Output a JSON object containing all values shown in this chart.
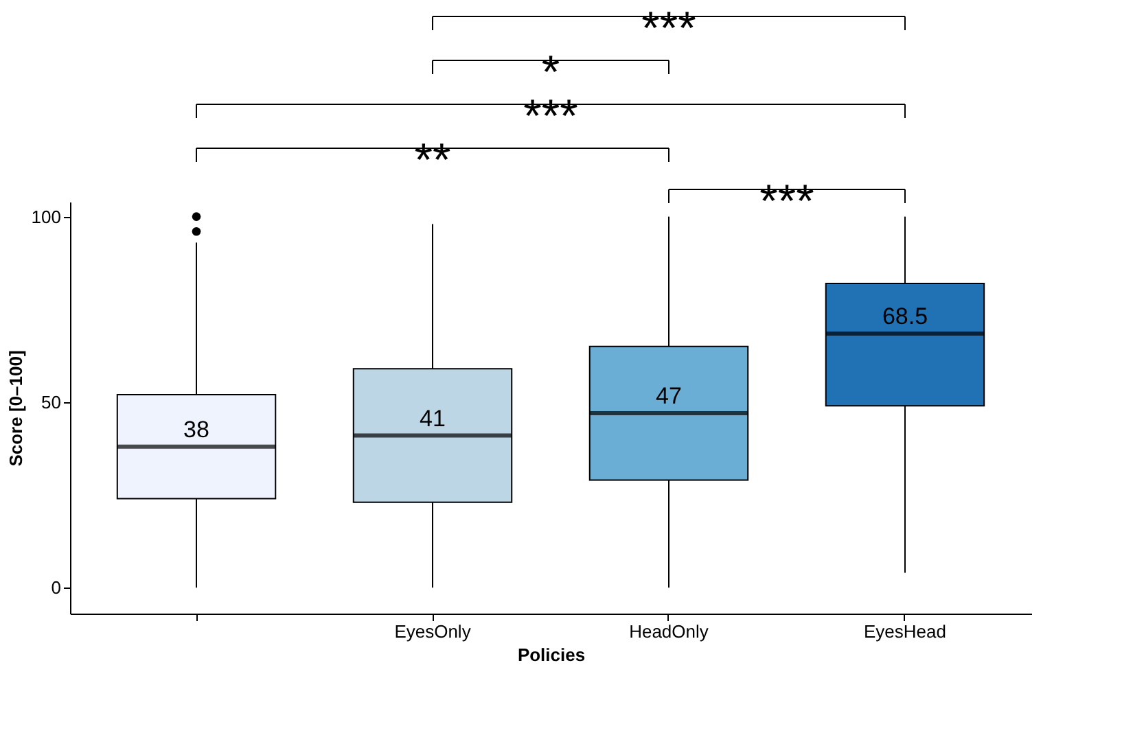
{
  "chart_data": {
    "type": "box",
    "xlabel": "Policies",
    "ylabel": "Score [0–100]",
    "categories": [
      null,
      "EyesOnly",
      "HeadOnly",
      "EyesHead"
    ],
    "colors": [
      "#eef3fd",
      "#bcd6e6",
      "#6aaed6",
      "#2171b5"
    ],
    "boxes": [
      {
        "low": 0,
        "q1": 24,
        "median": 38,
        "q3": 52,
        "high": 93,
        "outliers": [
          96,
          100
        ]
      },
      {
        "low": 0,
        "q1": 23,
        "median": 41,
        "q3": 59,
        "high": 98
      },
      {
        "low": 0,
        "q1": 29,
        "median": 47,
        "q3": 65,
        "high": 100
      },
      {
        "low": 4,
        "q1": 49,
        "median": 68.5,
        "q3": 82,
        "high": 100
      }
    ],
    "value_labels": [
      "38",
      "41",
      "47",
      "68.5"
    ],
    "ylim": [
      -7,
      104
    ],
    "yticks": [
      0,
      50,
      100
    ],
    "grid": false,
    "annotations": [
      "***",
      "*",
      "***",
      "**",
      "***"
    ]
  }
}
